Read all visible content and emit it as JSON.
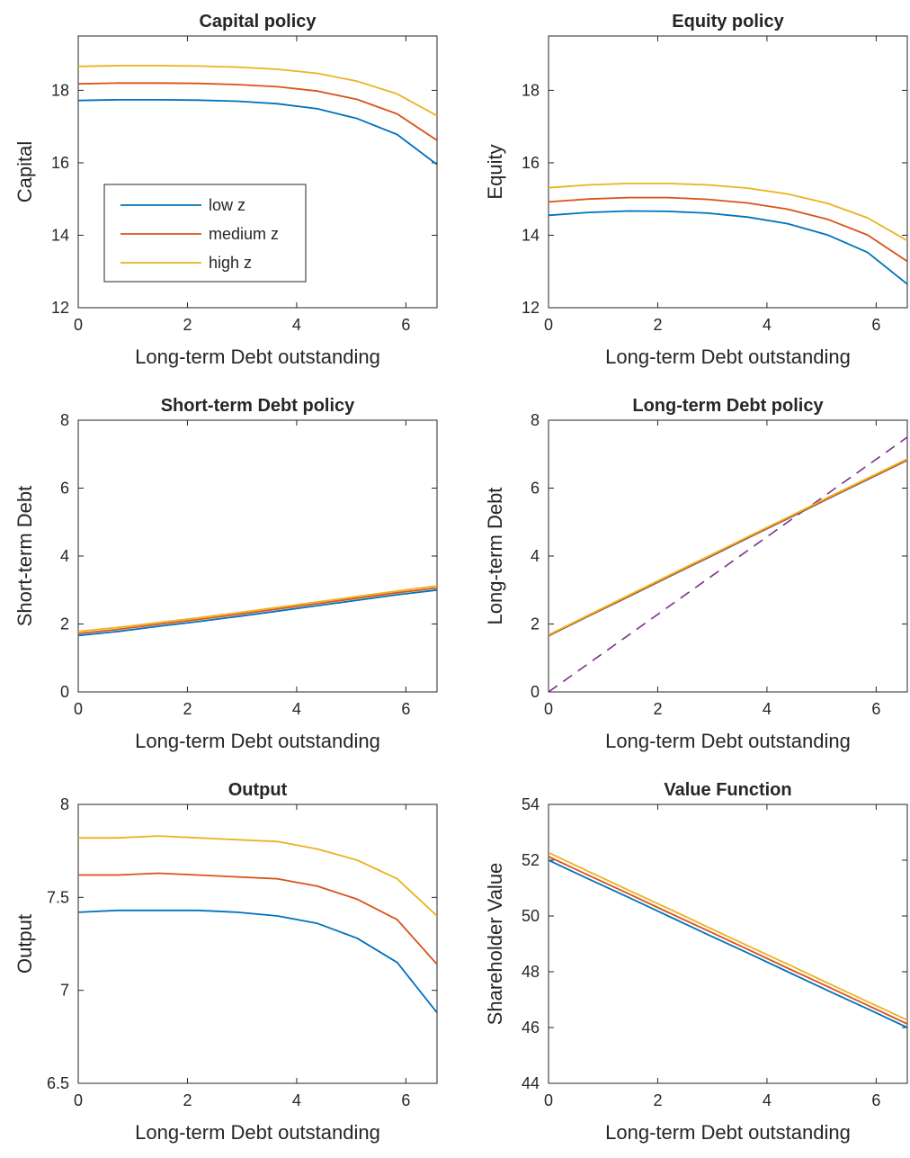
{
  "figure": {
    "background": "#ffffff",
    "axis_color": "#262626"
  },
  "legend": {
    "placement": "inside-left of first panel",
    "entries": [
      {
        "label": "low z",
        "color": "#0072BD"
      },
      {
        "label": "medium z",
        "color": "#D95319"
      },
      {
        "label": "high z",
        "color": "#EDB120"
      }
    ]
  },
  "chart_data": [
    {
      "type": "line",
      "title": "Capital policy",
      "xlabel": "Long-term Debt outstanding",
      "ylabel": "Capital",
      "xlim": [
        0,
        6.57
      ],
      "ylim": [
        12,
        19.5
      ],
      "xticks": [
        0,
        2,
        4,
        6
      ],
      "yticks": [
        12,
        14,
        16,
        18
      ],
      "grid": false,
      "x": [
        0,
        0.73,
        1.46,
        2.19,
        2.92,
        3.65,
        4.38,
        5.11,
        5.84,
        6.57
      ],
      "series": [
        {
          "name": "low z",
          "color": "#0072BD",
          "values": [
            17.72,
            17.74,
            17.74,
            17.73,
            17.7,
            17.63,
            17.49,
            17.22,
            16.78,
            15.95
          ]
        },
        {
          "name": "medium z",
          "color": "#D95319",
          "values": [
            18.18,
            18.2,
            18.2,
            18.19,
            18.16,
            18.1,
            17.98,
            17.75,
            17.35,
            16.62
          ]
        },
        {
          "name": "high z",
          "color": "#EDB120",
          "values": [
            18.66,
            18.68,
            18.68,
            18.67,
            18.64,
            18.58,
            18.47,
            18.25,
            17.9,
            17.3
          ]
        }
      ]
    },
    {
      "type": "line",
      "title": "Equity policy",
      "xlabel": "Long-term Debt outstanding",
      "ylabel": "Equity",
      "xlim": [
        0,
        6.57
      ],
      "ylim": [
        12,
        19.5
      ],
      "xticks": [
        0,
        2,
        4,
        6
      ],
      "yticks": [
        12,
        14,
        16,
        18
      ],
      "grid": false,
      "x": [
        0,
        0.73,
        1.46,
        2.19,
        2.92,
        3.65,
        4.38,
        5.11,
        5.84,
        6.57
      ],
      "series": [
        {
          "name": "low z",
          "color": "#0072BD",
          "values": [
            14.55,
            14.63,
            14.67,
            14.66,
            14.61,
            14.5,
            14.32,
            14.01,
            13.53,
            12.65
          ]
        },
        {
          "name": "medium z",
          "color": "#D95319",
          "values": [
            14.92,
            15.0,
            15.04,
            15.04,
            14.99,
            14.89,
            14.72,
            14.44,
            14.01,
            13.28
          ]
        },
        {
          "name": "high z",
          "color": "#EDB120",
          "values": [
            15.31,
            15.39,
            15.43,
            15.43,
            15.39,
            15.3,
            15.14,
            14.88,
            14.48,
            13.85
          ]
        }
      ]
    },
    {
      "type": "line",
      "title": "Short-term Debt policy",
      "xlabel": "Long-term Debt outstanding",
      "ylabel": "Short-term Debt",
      "xlim": [
        0,
        6.57
      ],
      "ylim": [
        0,
        8
      ],
      "xticks": [
        0,
        2,
        4,
        6
      ],
      "yticks": [
        0,
        2,
        4,
        6,
        8
      ],
      "grid": false,
      "x": [
        0,
        0.73,
        1.46,
        2.19,
        2.92,
        3.65,
        4.38,
        5.11,
        5.84,
        6.57
      ],
      "series": [
        {
          "name": "low z",
          "color": "#0072BD",
          "values": [
            1.66,
            1.78,
            1.93,
            2.07,
            2.22,
            2.38,
            2.54,
            2.7,
            2.86,
            3.0
          ]
        },
        {
          "name": "medium z",
          "color": "#D95319",
          "values": [
            1.72,
            1.84,
            1.99,
            2.13,
            2.28,
            2.44,
            2.6,
            2.76,
            2.92,
            3.06
          ]
        },
        {
          "name": "high z",
          "color": "#EDB120",
          "values": [
            1.78,
            1.9,
            2.04,
            2.18,
            2.33,
            2.49,
            2.65,
            2.81,
            2.97,
            3.12
          ]
        }
      ]
    },
    {
      "type": "line",
      "title": "Long-term Debt policy",
      "xlabel": "Long-term Debt outstanding",
      "ylabel": "Long-term Debt",
      "xlim": [
        0,
        6.57
      ],
      "ylim": [
        0,
        8
      ],
      "xticks": [
        0,
        2,
        4,
        6
      ],
      "yticks": [
        0,
        2,
        4,
        6,
        8
      ],
      "grid": false,
      "x": [
        0,
        0.73,
        1.46,
        2.19,
        2.92,
        3.65,
        4.38,
        5.11,
        5.84,
        6.57
      ],
      "series": [
        {
          "name": "low z",
          "color": "#0072BD",
          "values": [
            1.65,
            2.23,
            2.8,
            3.38,
            3.95,
            4.53,
            5.1,
            5.68,
            6.25,
            6.82
          ]
        },
        {
          "name": "medium z",
          "color": "#D95319",
          "values": [
            1.66,
            2.24,
            2.81,
            3.39,
            3.96,
            4.54,
            5.11,
            5.69,
            6.26,
            6.83
          ]
        },
        {
          "name": "high z",
          "color": "#EDB120",
          "values": [
            1.68,
            2.26,
            2.84,
            3.42,
            3.99,
            4.57,
            5.14,
            5.72,
            6.29,
            6.86
          ]
        }
      ],
      "reference_line": {
        "style": "dashed",
        "color": "#7E2F8E",
        "x": [
          0,
          6.57
        ],
        "values": [
          0,
          7.5
        ]
      }
    },
    {
      "type": "line",
      "title": "Output",
      "xlabel": "Long-term Debt outstanding",
      "ylabel": "Output",
      "xlim": [
        0,
        6.57
      ],
      "ylim": [
        6.5,
        8
      ],
      "xticks": [
        0,
        2,
        4,
        6
      ],
      "yticks": [
        6.5,
        7,
        7.5,
        8
      ],
      "yticklabels": [
        "6.5",
        "7",
        "7.5",
        "8"
      ],
      "grid": false,
      "x": [
        0,
        0.73,
        1.46,
        2.19,
        2.92,
        3.65,
        4.38,
        5.11,
        5.84,
        6.57
      ],
      "series": [
        {
          "name": "low z",
          "color": "#0072BD",
          "values": [
            7.42,
            7.43,
            7.43,
            7.43,
            7.42,
            7.4,
            7.36,
            7.28,
            7.15,
            6.88
          ]
        },
        {
          "name": "medium z",
          "color": "#D95319",
          "values": [
            7.62,
            7.62,
            7.63,
            7.62,
            7.61,
            7.6,
            7.56,
            7.49,
            7.38,
            7.14
          ]
        },
        {
          "name": "high z",
          "color": "#EDB120",
          "values": [
            7.82,
            7.82,
            7.83,
            7.82,
            7.81,
            7.8,
            7.76,
            7.7,
            7.6,
            7.4
          ]
        }
      ]
    },
    {
      "type": "line",
      "title": "Value Function",
      "xlabel": "Long-term Debt outstanding",
      "ylabel": "Shareholder Value",
      "xlim": [
        0,
        6.57
      ],
      "ylim": [
        44,
        54
      ],
      "xticks": [
        0,
        2,
        4,
        6
      ],
      "yticks": [
        44,
        46,
        48,
        50,
        52,
        54
      ],
      "grid": false,
      "x": [
        0,
        0.73,
        1.46,
        2.19,
        2.92,
        3.65,
        4.38,
        5.11,
        5.84,
        6.57
      ],
      "series": [
        {
          "name": "low z",
          "color": "#0072BD",
          "values": [
            52.0,
            51.33,
            50.67,
            50.0,
            49.33,
            48.67,
            48.0,
            47.33,
            46.67,
            46.0
          ]
        },
        {
          "name": "medium z",
          "color": "#D95319",
          "values": [
            52.13,
            51.46,
            50.8,
            50.13,
            49.47,
            48.8,
            48.13,
            47.47,
            46.8,
            46.13
          ]
        },
        {
          "name": "high z",
          "color": "#EDB120",
          "values": [
            52.27,
            51.6,
            50.93,
            50.27,
            49.6,
            48.93,
            48.27,
            47.6,
            46.93,
            46.27
          ]
        }
      ]
    }
  ]
}
